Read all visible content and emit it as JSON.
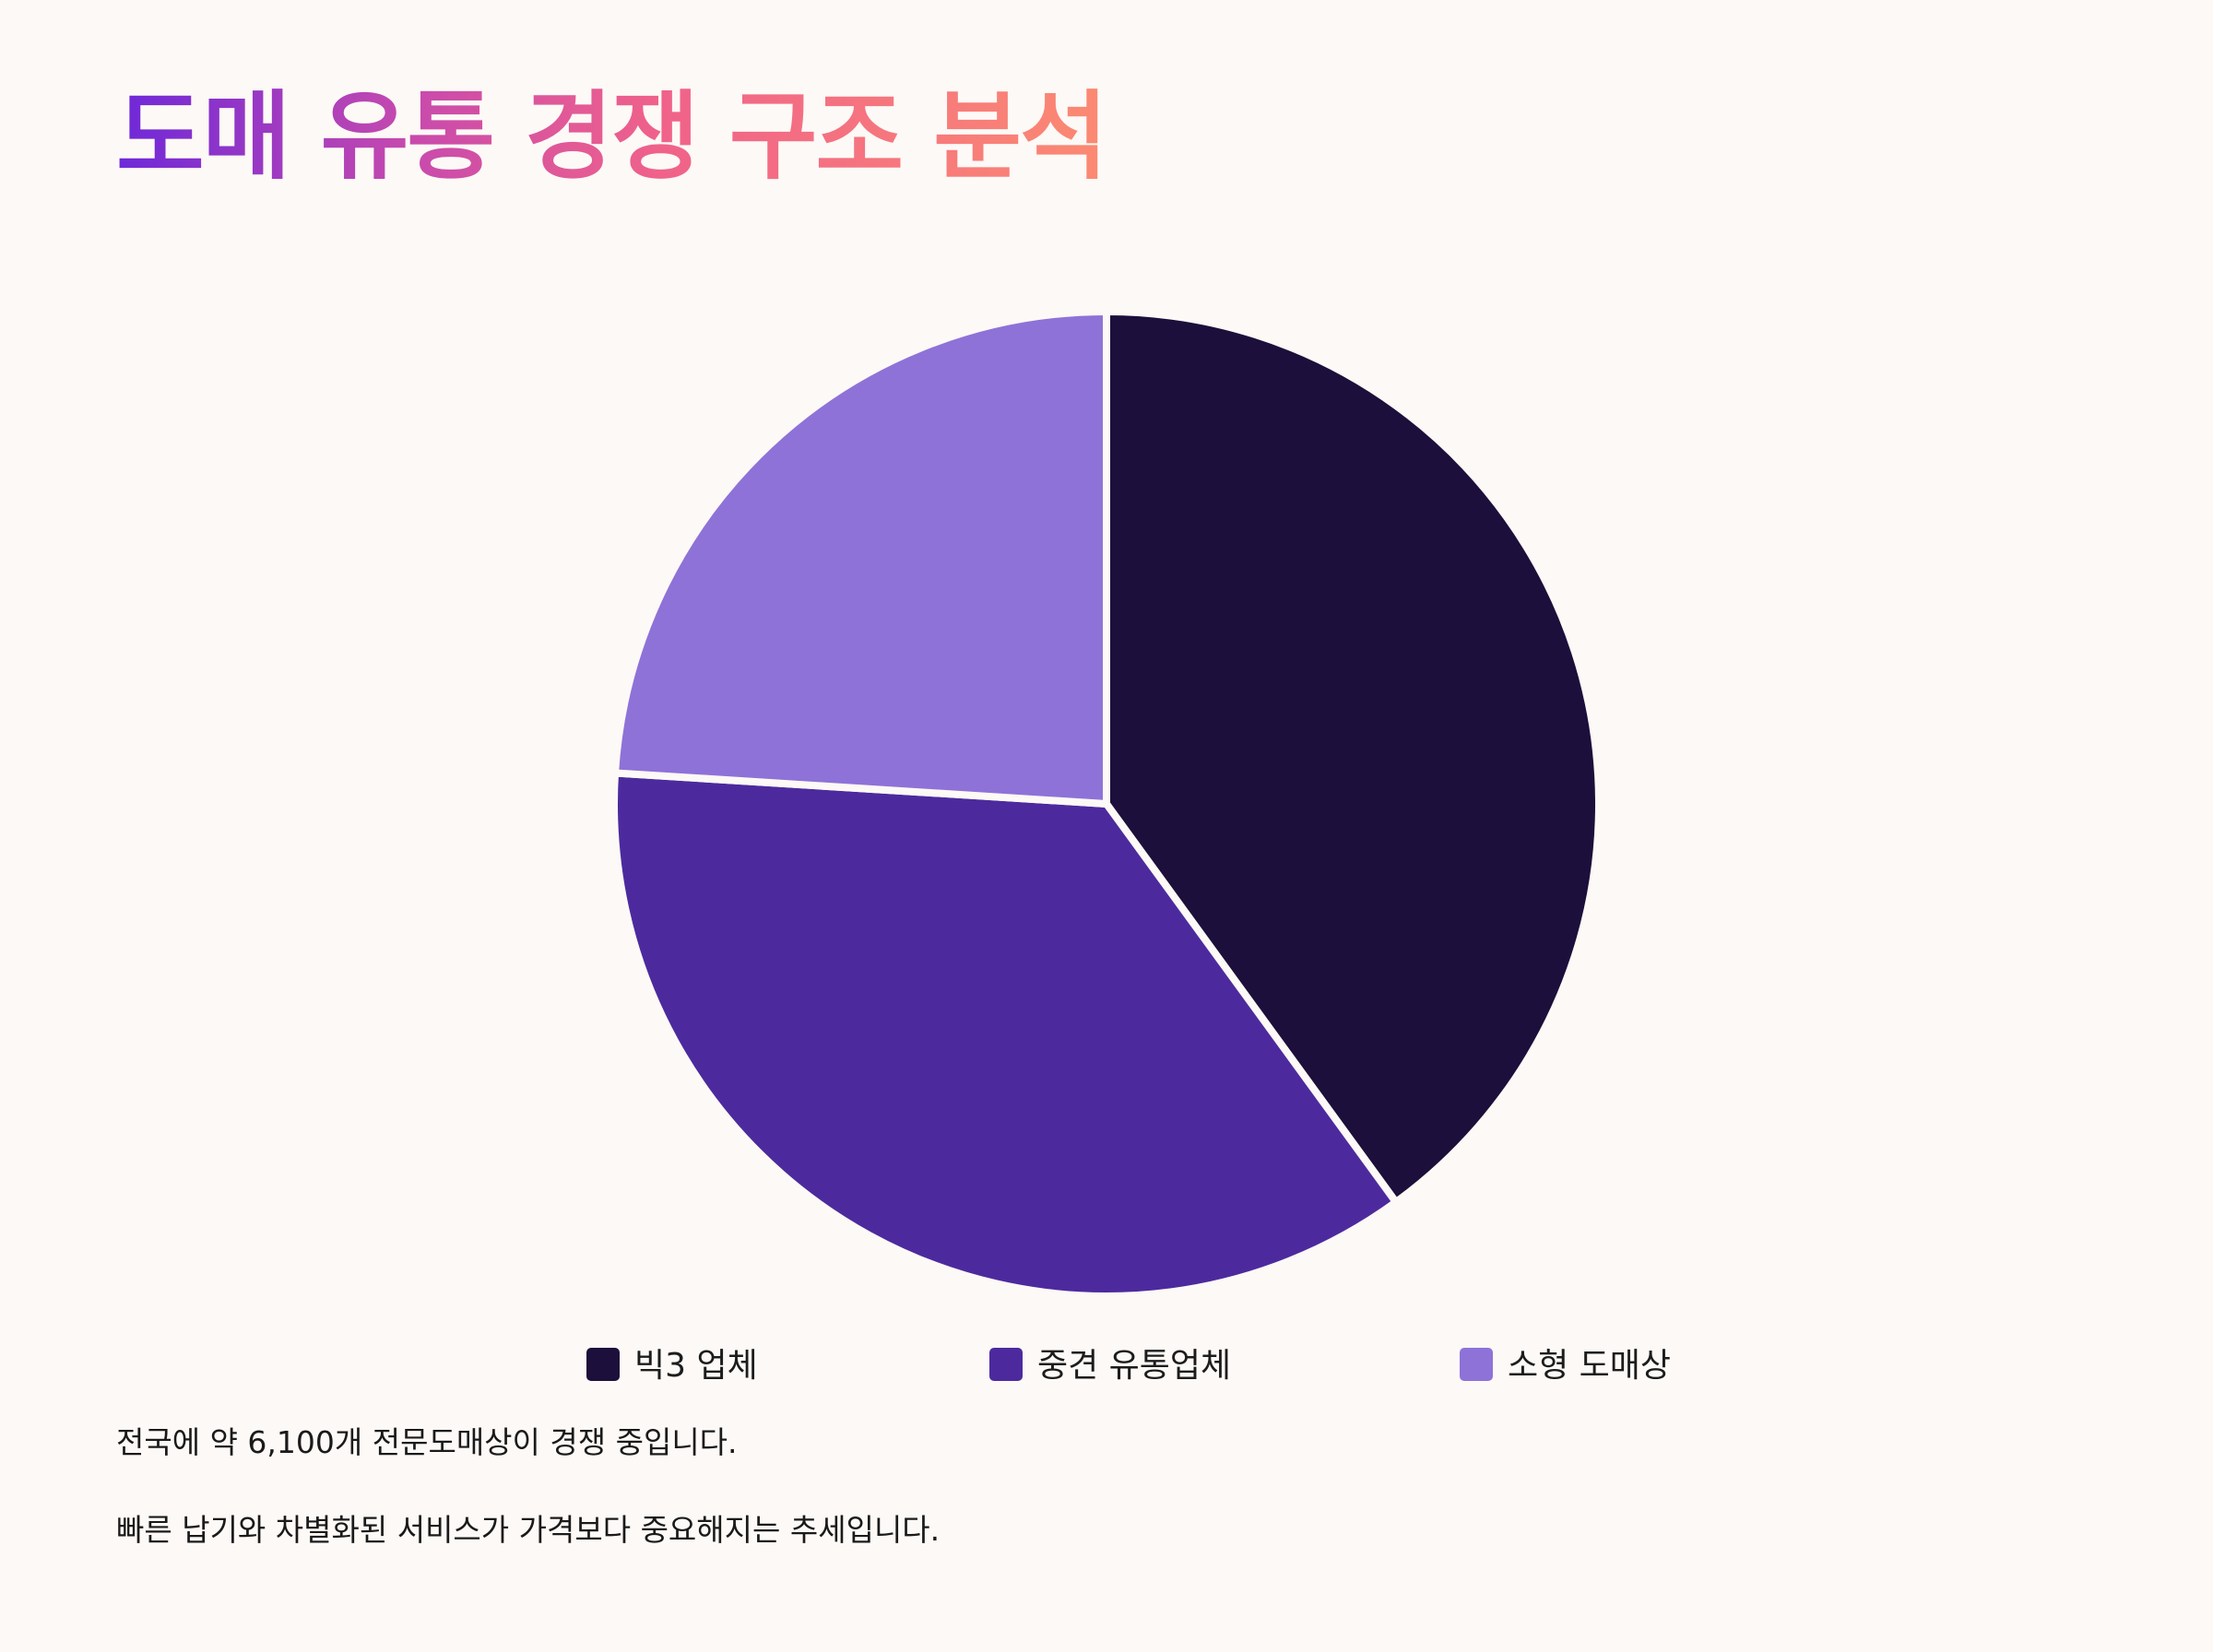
{
  "title": "도매 유통 경쟁 구조 분석",
  "notes": [
    "전국에 약 6,100개 전문도매상이 경쟁 중입니다.",
    "빠른 납기와 차별화된 서비스가 가격보다 중요해지는 추세입니다."
  ],
  "chart_data": {
    "type": "pie",
    "title": "",
    "categories": [
      "빅3 업체",
      "중견 유통업체",
      "소형 도매상"
    ],
    "values": [
      40,
      36,
      24
    ],
    "colors": [
      "#1c0f3b",
      "#4c2a9e",
      "#8e72d8"
    ],
    "legend_position": "bottom",
    "start_angle": "top (12 o'clock), clockwise",
    "slice_border_color": "#fdf9f6"
  }
}
